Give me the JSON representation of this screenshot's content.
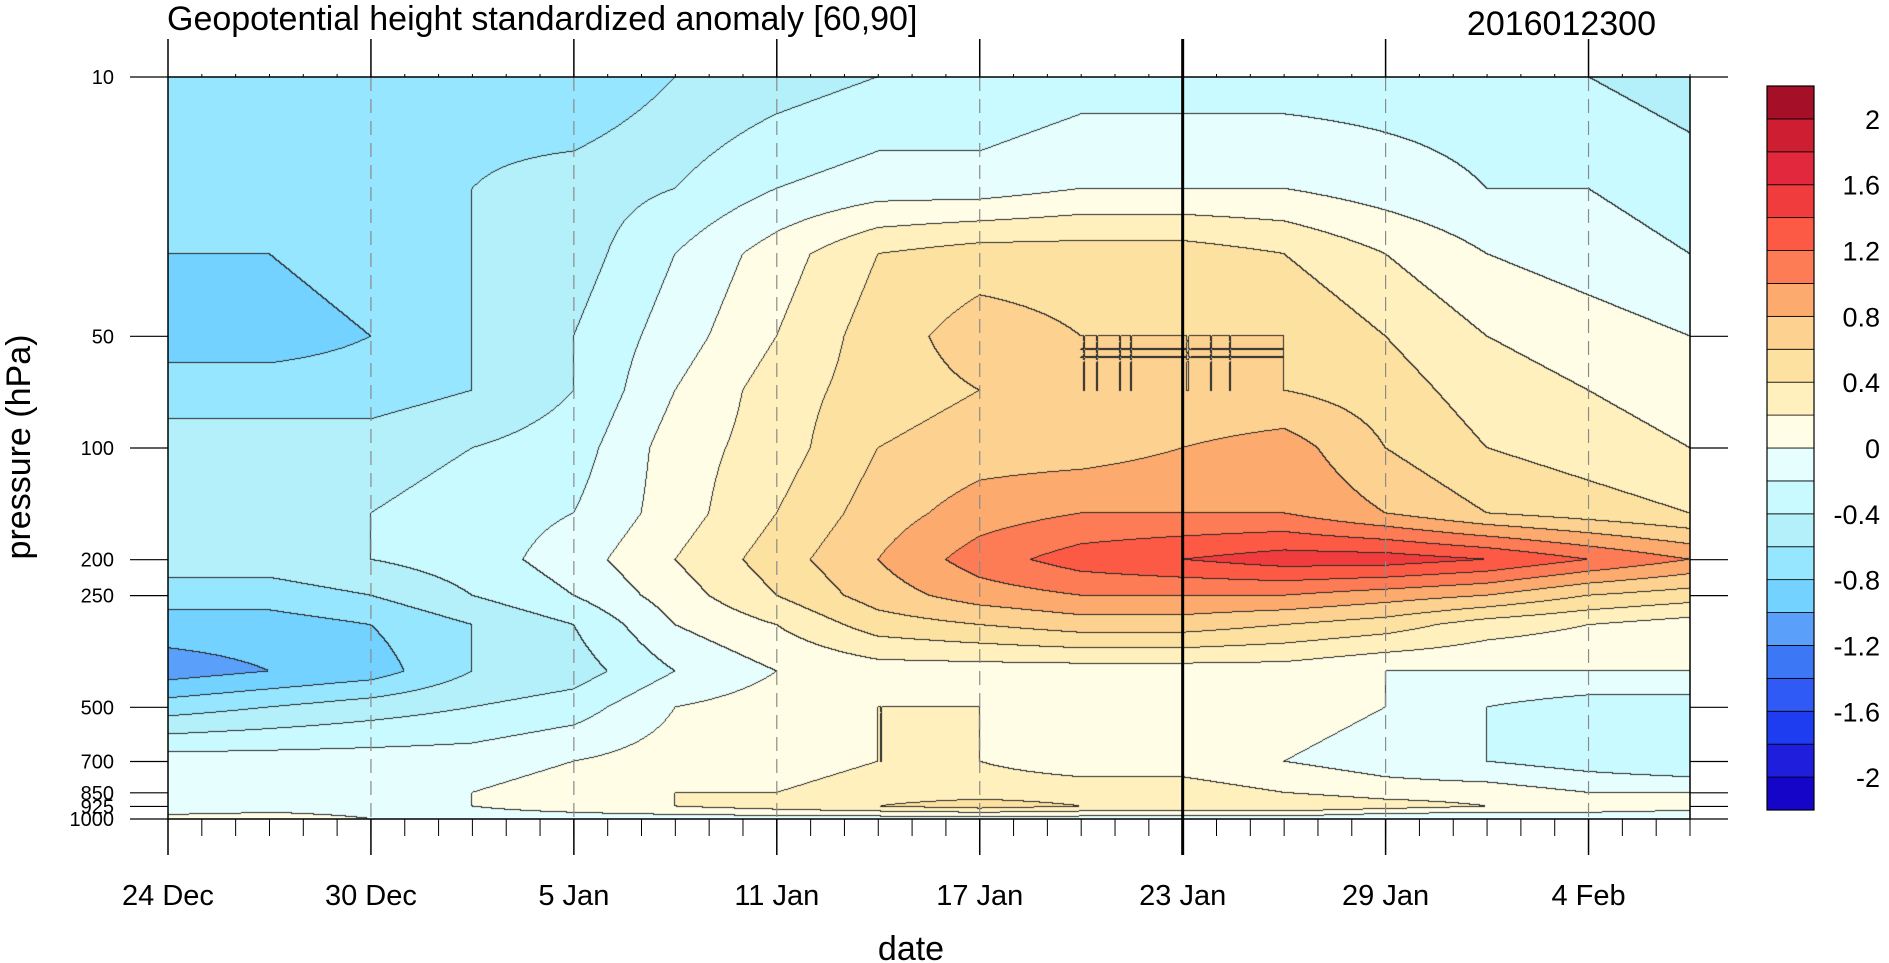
{
  "chart_data": {
    "type": "heatmap",
    "title": "Geopotential height standardized anomaly [60,90]",
    "subtitle": "2016012300",
    "xlabel": "date",
    "ylabel": "pressure (hPa)",
    "y_scale": "log",
    "y_reversed": true,
    "ylim": [
      1000,
      10
    ],
    "xlim": [
      "2015-12-24",
      "2016-02-07"
    ],
    "x_tick_labels": [
      "24 Dec",
      "30 Dec",
      "5 Jan",
      "11 Jan",
      "17 Jan",
      "23 Jan",
      "29 Jan",
      "4 Feb"
    ],
    "x_tick_dates": [
      "2015-12-24",
      "2015-12-30",
      "2016-01-05",
      "2016-01-11",
      "2016-01-17",
      "2016-01-23",
      "2016-01-29",
      "2016-02-04"
    ],
    "y_ticks": [
      10,
      50,
      100,
      200,
      250,
      500,
      700,
      850,
      925,
      1000
    ],
    "y_tick_labels": [
      "10",
      "50",
      "100",
      "200",
      "250",
      "500",
      "700",
      "850",
      "925",
      "1000"
    ],
    "current_date_marker": "2016-01-23",
    "grid": "dashed vertical at labeled dates",
    "legend": "colorbar right",
    "colorbar": {
      "levels": [
        -2.2,
        -2.0,
        -1.8,
        -1.6,
        -1.4,
        -1.2,
        -1.0,
        -0.8,
        -0.6,
        -0.4,
        -0.2,
        0,
        0.2,
        0.4,
        0.6,
        0.8,
        1.0,
        1.2,
        1.4,
        1.6,
        1.8,
        2.0,
        2.2
      ],
      "labels": [
        "2",
        "1.6",
        "1.2",
        "0.8",
        "0.4",
        "0",
        "-0.4",
        "-0.8",
        "-1.2",
        "-1.6",
        "-2"
      ],
      "colors": [
        "#1405c8",
        "#1e1edc",
        "#1e3cf0",
        "#2f5af5",
        "#3c78f5",
        "#5aa0fa",
        "#73d2ff",
        "#96e6ff",
        "#b4f0fa",
        "#c8faff",
        "#e6fffe",
        "#fffde6",
        "#fff0be",
        "#fde1a0",
        "#fdd190",
        "#fdaa6e",
        "#fd7b55",
        "#fd5a46",
        "#f03c3c",
        "#e1283c",
        "#cd1e32",
        "#a50f28"
      ],
      "colors_order": "low_to_high"
    },
    "contour_field": {
      "dates": [
        "2015-12-24",
        "2015-12-27",
        "2015-12-30",
        "2016-01-02",
        "2016-01-05",
        "2016-01-08",
        "2016-01-11",
        "2016-01-14",
        "2016-01-17",
        "2016-01-20",
        "2016-01-23",
        "2016-01-26",
        "2016-01-29",
        "2016-02-01",
        "2016-02-04",
        "2016-02-07"
      ],
      "levels_hPa": [
        10,
        20,
        30,
        50,
        70,
        100,
        150,
        200,
        250,
        300,
        400,
        500,
        700,
        850,
        925,
        1000
      ],
      "values": [
        [
          -0.6,
          -0.7,
          -0.8,
          -0.9,
          -0.7,
          -0.5,
          -0.4,
          -0.5,
          -0.7,
          -0.9,
          -1.1,
          -0.7,
          -0.1,
          -0.1,
          -0.2,
          0.1
        ],
        [
          -0.6,
          -0.7,
          -0.8,
          -0.9,
          -0.7,
          -0.5,
          -0.4,
          -0.5,
          -0.7,
          -0.9,
          -1.0,
          -0.6,
          -0.1,
          -0.1,
          -0.1,
          0.1
        ],
        [
          -0.7,
          -0.7,
          -0.7,
          -0.8,
          -0.7,
          -0.5,
          -0.4,
          -0.4,
          -0.6,
          -0.8,
          -0.9,
          -0.5,
          -0.1,
          -0.1,
          -0.1,
          0.0
        ],
        [
          -0.7,
          -0.6,
          -0.6,
          -0.6,
          -0.6,
          -0.4,
          -0.3,
          -0.3,
          -0.4,
          -0.6,
          -0.6,
          -0.4,
          -0.1,
          0.0,
          0.0,
          -0.1
        ],
        [
          -0.8,
          -0.5,
          -0.5,
          -0.4,
          -0.4,
          -0.3,
          -0.2,
          -0.1,
          -0.2,
          -0.4,
          -0.5,
          -0.3,
          0.0,
          0.1,
          0.1,
          -0.1
        ],
        [
          -0.6,
          -0.4,
          -0.2,
          -0.1,
          0.0,
          0.1,
          0.1,
          0.2,
          0.1,
          0.0,
          -0.2,
          0.0,
          0.1,
          0.2,
          0.2,
          -0.1
        ],
        [
          -0.5,
          -0.2,
          0.1,
          0.2,
          0.3,
          0.3,
          0.4,
          0.5,
          0.4,
          0.2,
          0.0,
          0.1,
          0.1,
          0.2,
          0.3,
          -0.1
        ],
        [
          -0.4,
          -0.1,
          0.4,
          0.5,
          0.5,
          0.6,
          0.7,
          0.8,
          0.7,
          0.5,
          0.1,
          0.2,
          0.2,
          0.3,
          0.4,
          -0.1
        ],
        [
          -0.4,
          -0.1,
          0.5,
          0.7,
          0.6,
          0.7,
          0.9,
          1.1,
          0.9,
          0.6,
          0.1,
          0.2,
          0.2,
          0.3,
          0.5,
          -0.1
        ],
        [
          -0.3,
          0.0,
          0.5,
          0.6,
          0.6,
          0.7,
          1.0,
          1.3,
          1.0,
          0.7,
          0.1,
          0.2,
          0.1,
          0.3,
          0.4,
          -0.1
        ],
        [
          -0.3,
          0.0,
          0.5,
          0.6,
          0.6,
          0.8,
          1.0,
          1.4,
          1.0,
          0.7,
          0.1,
          0.1,
          0.1,
          0.3,
          0.4,
          -0.1
        ],
        [
          -0.3,
          0.0,
          0.4,
          0.6,
          0.6,
          0.9,
          1.0,
          1.5,
          1.0,
          0.6,
          0.1,
          0.1,
          0.0,
          0.2,
          0.4,
          -0.1
        ],
        [
          -0.3,
          -0.1,
          0.2,
          0.4,
          0.5,
          0.6,
          0.8,
          1.5,
          0.9,
          0.5,
          0.0,
          0.0,
          -0.1,
          0.1,
          0.3,
          -0.2
        ],
        [
          -0.3,
          -0.2,
          0.0,
          0.2,
          0.3,
          0.4,
          0.6,
          1.4,
          0.8,
          0.3,
          0.0,
          -0.2,
          -0.2,
          0.1,
          0.2,
          -0.2
        ],
        [
          -0.4,
          -0.2,
          -0.1,
          0.1,
          0.2,
          0.3,
          0.5,
          1.2,
          0.6,
          0.2,
          0.0,
          -0.3,
          -0.3,
          0.0,
          0.2,
          -0.2
        ],
        [
          -0.5,
          -0.3,
          -0.2,
          0.0,
          0.1,
          0.2,
          0.4,
          1.0,
          0.5,
          0.1,
          0.0,
          -0.3,
          -0.4,
          0.0,
          0.1,
          -0.2
        ]
      ]
    }
  }
}
